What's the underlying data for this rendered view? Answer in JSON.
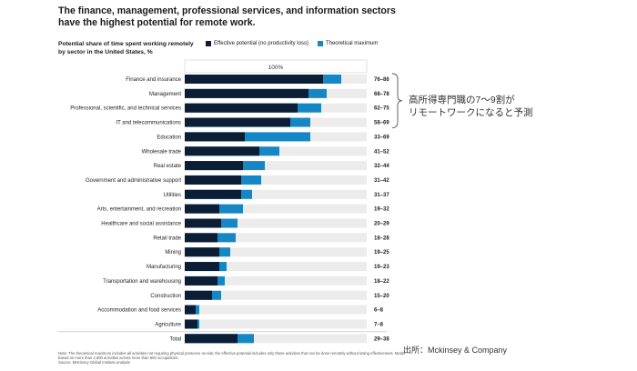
{
  "chart_data": {
    "type": "bar",
    "title": "The finance, management, professional services, and information sectors have the highest potential for remote work.",
    "subtitle": "Potential share of time spent working remotely by sector in the United States, %",
    "axis_top_label": "100%",
    "xlim": [
      0,
      100
    ],
    "legend": {
      "effective": "Effective potential (no productivity loss)",
      "theoretical": "Theoretical maximum"
    },
    "colors": {
      "effective": "#0b1e35",
      "theoretical": "#1587c4",
      "background": "#ececec",
      "grid": "#cfcfcf"
    },
    "categories": [
      "Finance and insurance",
      "Management",
      "Professional, scientific, and technical services",
      "IT and telecommunications",
      "Education",
      "Wholesale trade",
      "Real estate",
      "Government and administrative support",
      "Utilities",
      "Arts, entertainment, and recreation",
      "Healthcare and social assistance",
      "Retail trade",
      "Mining",
      "Manufacturing",
      "Transportation and warehousing",
      "Construction",
      "Accommodation and food services",
      "Agriculture",
      "Total"
    ],
    "series": [
      {
        "name": "Effective potential (no productivity loss)",
        "values": [
          76,
          68,
          62,
          58,
          33,
          41,
          32,
          31,
          31,
          19,
          20,
          18,
          19,
          19,
          18,
          15,
          6,
          7,
          29
        ]
      },
      {
        "name": "Theoretical maximum",
        "values": [
          86,
          78,
          75,
          69,
          69,
          52,
          44,
          42,
          37,
          32,
          29,
          28,
          25,
          23,
          22,
          20,
          8,
          8,
          38
        ]
      }
    ],
    "range_labels": [
      "76–86",
      "68–78",
      "62–75",
      "58–69",
      "33–69",
      "41–52",
      "32–44",
      "31–42",
      "31–37",
      "19–32",
      "20–29",
      "18–28",
      "19–25",
      "19–23",
      "18–22",
      "15–20",
      "6–8",
      "7–8",
      "29–38"
    ]
  },
  "callout": {
    "line1": "高所得専門職の7～9割が",
    "line2": "リモートワークになると予測"
  },
  "source_credit": "出所：Mckinsey & Company",
  "note": "Note: The theoretical maximum includes all activities not requiring physical presence on-site; the effective potential includes only those activities that can be done remotely without losing effectiveness. Model based on more than 2,000 activities across more than 800 occupations.",
  "source": "Source: McKinsey Global Institute analysis"
}
